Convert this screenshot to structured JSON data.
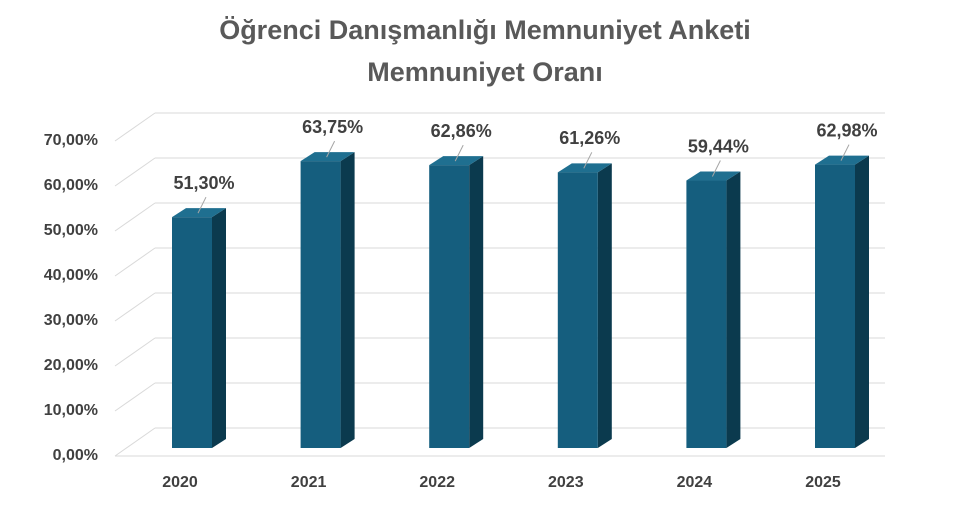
{
  "chart_data": {
    "type": "bar3d",
    "title": "Öğrenci Danışmanlığı Memnuniyet Anketi",
    "subtitle": "Memnuniyet Oranı",
    "categories": [
      "2020",
      "2021",
      "2022",
      "2023",
      "2024",
      "2025"
    ],
    "values": [
      51.3,
      63.75,
      62.86,
      61.26,
      59.44,
      62.98
    ],
    "value_labels": [
      "51,30%",
      "63,75%",
      "62,86%",
      "61,26%",
      "59,44%",
      "62,98%"
    ],
    "color": "#155e7e",
    "ylim": [
      0,
      70
    ],
    "yticks": [
      {
        "value": 0,
        "label": "0,00%"
      },
      {
        "value": 10,
        "label": "10,00%"
      },
      {
        "value": 20,
        "label": "20,00%"
      },
      {
        "value": 30,
        "label": "30,00%"
      },
      {
        "value": 40,
        "label": "40,00%"
      },
      {
        "value": 50,
        "label": "50,00%"
      },
      {
        "value": 60,
        "label": "60,00%"
      },
      {
        "value": 70,
        "label": "70,00%"
      }
    ],
    "grid": true
  }
}
